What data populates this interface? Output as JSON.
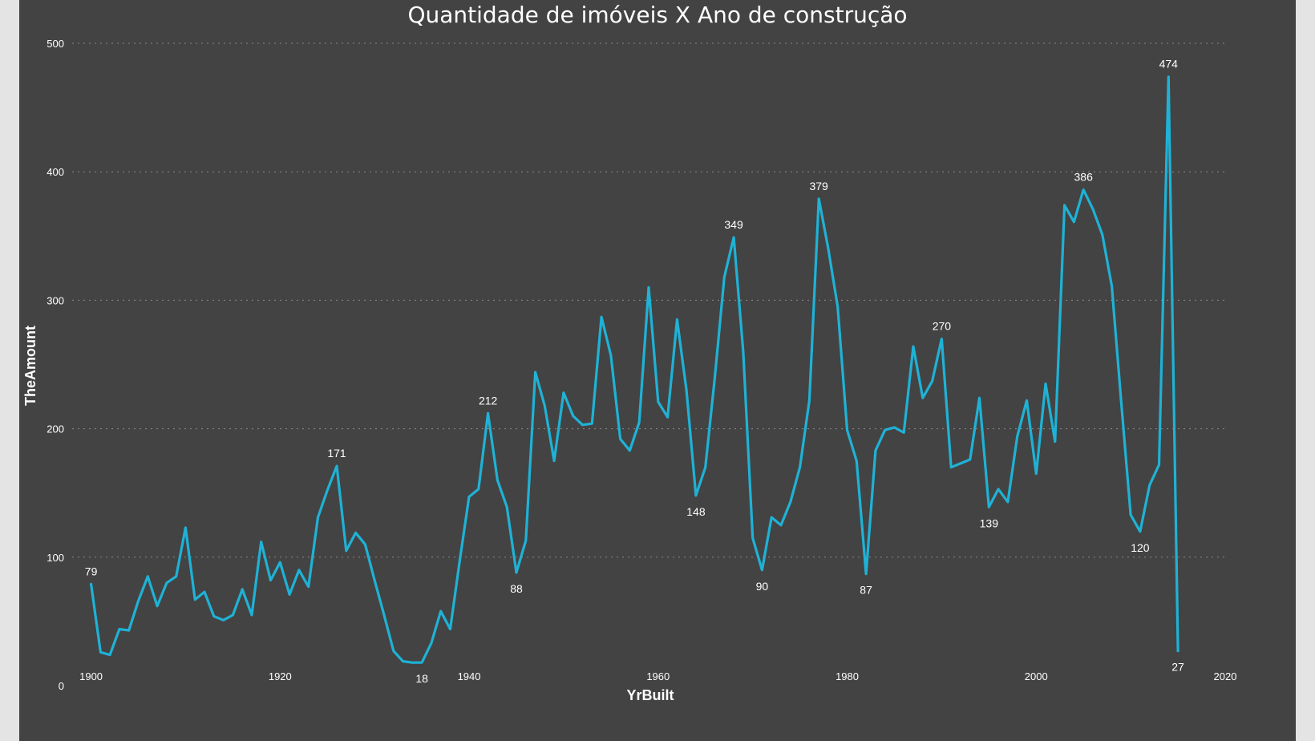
{
  "chart_data": {
    "type": "line",
    "title": "Quantidade de imóveis X Ano de construção",
    "xlabel": "YrBuilt",
    "ylabel": "TheAmount",
    "xlim": [
      1898,
      2020
    ],
    "ylim": [
      0,
      500
    ],
    "x_ticks": [
      1900,
      1920,
      1940,
      1960,
      1980,
      2000,
      2020
    ],
    "y_ticks": [
      0,
      100,
      200,
      300,
      400,
      500
    ],
    "grid": "horizontal dotted",
    "line_color": "#1fb2d6",
    "series": [
      {
        "x": [
          1900,
          1901,
          1902,
          1903,
          1904,
          1905,
          1906,
          1907,
          1908,
          1909,
          1910,
          1911,
          1912,
          1913,
          1914,
          1915,
          1916,
          1917,
          1918,
          1919,
          1920,
          1921,
          1922,
          1923,
          1924,
          1925,
          1926,
          1927,
          1928,
          1929,
          1930,
          1931,
          1932,
          1933,
          1934,
          1935,
          1936,
          1937,
          1938,
          1939,
          1940,
          1941,
          1942,
          1943,
          1944,
          1945,
          1946,
          1947,
          1948,
          1949,
          1950,
          1951,
          1952,
          1953,
          1954,
          1955,
          1956,
          1957,
          1958,
          1959,
          1960,
          1961,
          1962,
          1963,
          1964,
          1965,
          1966,
          1967,
          1968,
          1969,
          1970,
          1971,
          1972,
          1973,
          1974,
          1975,
          1976,
          1977,
          1978,
          1979,
          1980,
          1981,
          1982,
          1983,
          1984,
          1985,
          1986,
          1987,
          1988,
          1989,
          1990,
          1991,
          1992,
          1993,
          1994,
          1995,
          1996,
          1997,
          1998,
          1999,
          2000,
          2001,
          2002,
          2003,
          2004,
          2005,
          2006,
          2007,
          2008,
          2009,
          2010,
          2011,
          2012,
          2013,
          2014,
          2015
        ],
        "values": [
          79,
          26,
          24,
          44,
          43,
          66,
          85,
          62,
          80,
          85,
          123,
          67,
          73,
          54,
          51,
          55,
          75,
          55,
          112,
          82,
          96,
          71,
          90,
          77,
          131,
          152,
          171,
          105,
          119,
          110,
          82,
          55,
          27,
          19,
          18,
          18,
          33,
          58,
          44,
          97,
          147,
          153,
          212,
          160,
          139,
          88,
          113,
          244,
          218,
          175,
          228,
          210,
          203,
          204,
          287,
          257,
          192,
          183,
          205,
          310,
          221,
          209,
          285,
          230,
          148,
          170,
          240,
          318,
          349,
          260,
          115,
          90,
          131,
          125,
          143,
          170,
          222,
          379,
          340,
          295,
          199,
          175,
          87,
          183,
          199,
          201,
          197,
          264,
          224,
          237,
          270,
          170,
          173,
          176,
          224,
          139,
          153,
          143,
          194,
          222,
          165,
          235,
          190,
          374,
          361,
          386,
          371,
          351,
          311,
          221,
          133,
          120,
          156,
          172,
          474,
          27
        ]
      }
    ],
    "data_labels": [
      {
        "x": 1900,
        "y": 79,
        "text": "79",
        "pos": "above"
      },
      {
        "x": 1926,
        "y": 171,
        "text": "171",
        "pos": "above"
      },
      {
        "x": 1935,
        "y": 18,
        "text": "18",
        "pos": "below"
      },
      {
        "x": 1942,
        "y": 212,
        "text": "212",
        "pos": "above"
      },
      {
        "x": 1945,
        "y": 88,
        "text": "88",
        "pos": "below"
      },
      {
        "x": 1964,
        "y": 148,
        "text": "148",
        "pos": "below"
      },
      {
        "x": 1968,
        "y": 349,
        "text": "349",
        "pos": "above"
      },
      {
        "x": 1971,
        "y": 90,
        "text": "90",
        "pos": "below"
      },
      {
        "x": 1977,
        "y": 379,
        "text": "379",
        "pos": "above"
      },
      {
        "x": 1982,
        "y": 87,
        "text": "87",
        "pos": "below"
      },
      {
        "x": 1990,
        "y": 270,
        "text": "270",
        "pos": "above"
      },
      {
        "x": 1995,
        "y": 139,
        "text": "139",
        "pos": "below"
      },
      {
        "x": 2005,
        "y": 386,
        "text": "386",
        "pos": "above"
      },
      {
        "x": 2011,
        "y": 120,
        "text": "120",
        "pos": "below"
      },
      {
        "x": 2014,
        "y": 474,
        "text": "474",
        "pos": "above"
      },
      {
        "x": 2015,
        "y": 27,
        "text": "27",
        "pos": "below"
      }
    ]
  }
}
